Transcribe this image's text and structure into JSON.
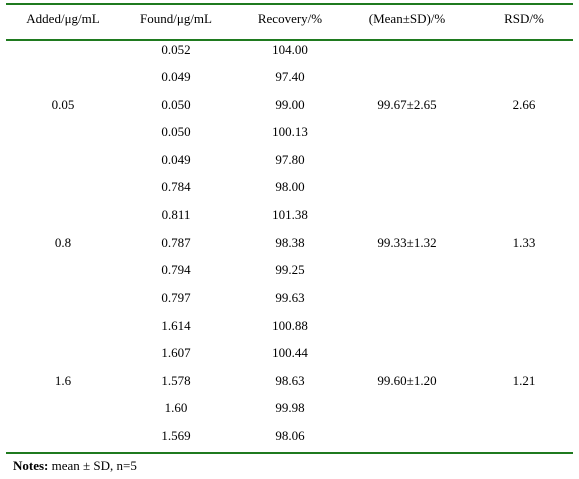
{
  "table": {
    "headers": [
      "Added/μg/mL",
      "Found/μg/mL",
      "Recovery/%",
      "(Mean±SD)/%",
      "RSD/%"
    ],
    "groups": [
      {
        "added": "0.05",
        "found": [
          "0.052",
          "0.049",
          "0.050",
          "0.050",
          "0.049"
        ],
        "recovery": [
          "104.00",
          "97.40",
          "99.00",
          "100.13",
          "97.80"
        ],
        "mean_sd": "99.67±2.65",
        "rsd": "2.66"
      },
      {
        "added": "0.8",
        "found": [
          "0.784",
          "0.811",
          "0.787",
          "0.794",
          "0.797"
        ],
        "recovery": [
          "98.00",
          "101.38",
          "98.38",
          "99.25",
          "99.63"
        ],
        "mean_sd": "99.33±1.32",
        "rsd": "1.33"
      },
      {
        "added": "1.6",
        "found": [
          "1.614",
          "1.607",
          "1.578",
          "1.60",
          "1.569"
        ],
        "recovery": [
          "100.88",
          "100.44",
          "98.63",
          "99.98",
          "98.06"
        ],
        "mean_sd": "99.60±1.20",
        "rsd": "1.21"
      }
    ]
  },
  "notes": {
    "label": "Notes:",
    "text": " mean ± SD, n=5"
  },
  "colors": {
    "rule": "#1f7a1f",
    "text": "#000000"
  }
}
